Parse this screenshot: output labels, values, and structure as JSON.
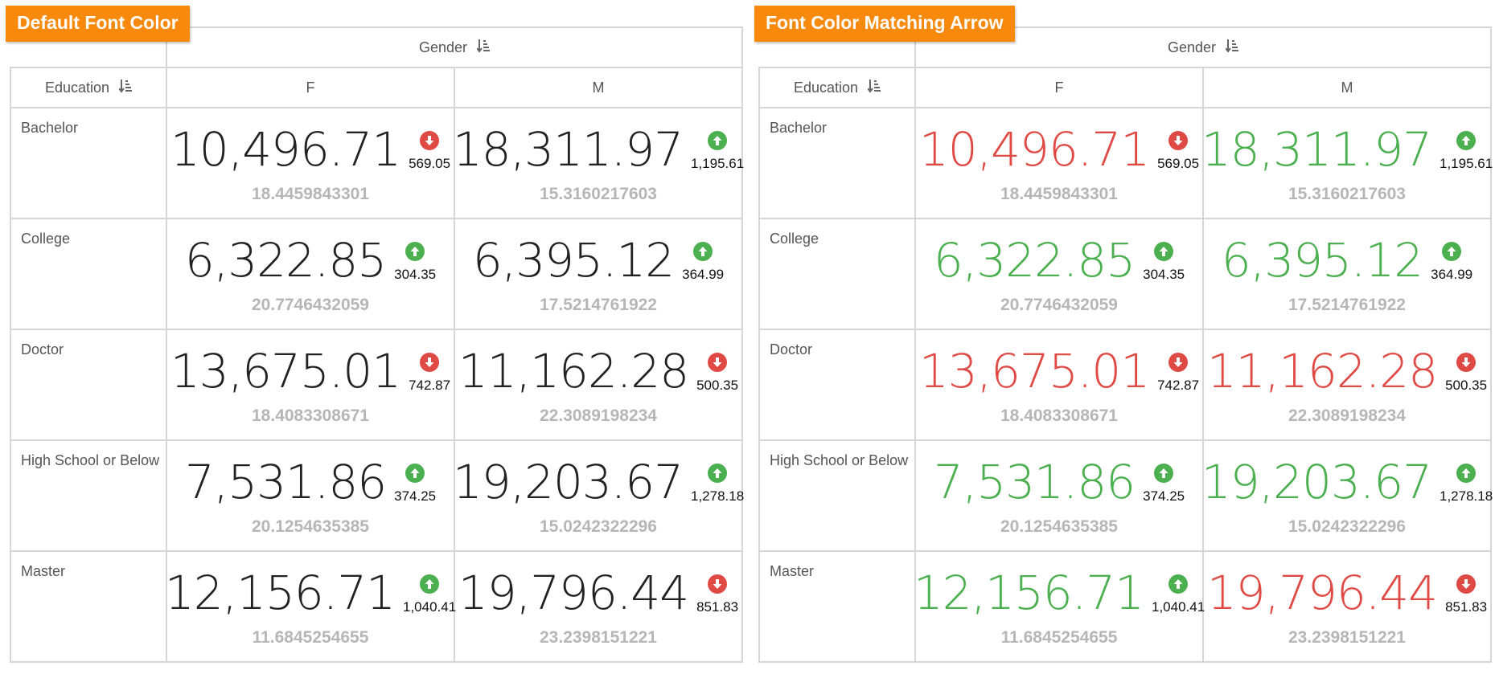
{
  "panels": [
    {
      "badge": "Default Font Color",
      "column_header": "Gender",
      "row_header": "Education",
      "columns": [
        "F",
        "M"
      ],
      "value_color_mode": "default",
      "rows": [
        {
          "label": "Bachelor",
          "cells": [
            {
              "value": "10,496.71",
              "delta": "569.05",
              "direction": "down",
              "sub": "18.4459843301"
            },
            {
              "value": "18,311.97",
              "delta": "1,195.61",
              "direction": "up",
              "sub": "15.3160217603"
            }
          ]
        },
        {
          "label": "College",
          "cells": [
            {
              "value": "6,322.85",
              "delta": "304.35",
              "direction": "up",
              "sub": "20.7746432059"
            },
            {
              "value": "6,395.12",
              "delta": "364.99",
              "direction": "up",
              "sub": "17.5214761922"
            }
          ]
        },
        {
          "label": "Doctor",
          "cells": [
            {
              "value": "13,675.01",
              "delta": "742.87",
              "direction": "down",
              "sub": "18.4083308671"
            },
            {
              "value": "11,162.28",
              "delta": "500.35",
              "direction": "down",
              "sub": "22.3089198234"
            }
          ]
        },
        {
          "label": "High School or Below",
          "cells": [
            {
              "value": "7,531.86",
              "delta": "374.25",
              "direction": "up",
              "sub": "20.1254635385"
            },
            {
              "value": "19,203.67",
              "delta": "1,278.18",
              "direction": "up",
              "sub": "15.0242322296"
            }
          ]
        },
        {
          "label": "Master",
          "cells": [
            {
              "value": "12,156.71",
              "delta": "1,040.41",
              "direction": "up",
              "sub": "11.6845254655"
            },
            {
              "value": "19,796.44",
              "delta": "851.83",
              "direction": "down",
              "sub": "23.2398151221"
            }
          ]
        }
      ]
    },
    {
      "badge": "Font Color Matching Arrow",
      "column_header": "Gender",
      "row_header": "Education",
      "columns": [
        "F",
        "M"
      ],
      "value_color_mode": "match-arrow",
      "rows": [
        {
          "label": "Bachelor",
          "cells": [
            {
              "value": "10,496.71",
              "delta": "569.05",
              "direction": "down",
              "sub": "18.4459843301"
            },
            {
              "value": "18,311.97",
              "delta": "1,195.61",
              "direction": "up",
              "sub": "15.3160217603"
            }
          ]
        },
        {
          "label": "College",
          "cells": [
            {
              "value": "6,322.85",
              "delta": "304.35",
              "direction": "up",
              "sub": "20.7746432059"
            },
            {
              "value": "6,395.12",
              "delta": "364.99",
              "direction": "up",
              "sub": "17.5214761922"
            }
          ]
        },
        {
          "label": "Doctor",
          "cells": [
            {
              "value": "13,675.01",
              "delta": "742.87",
              "direction": "down",
              "sub": "18.4083308671"
            },
            {
              "value": "11,162.28",
              "delta": "500.35",
              "direction": "down",
              "sub": "22.3089198234"
            }
          ]
        },
        {
          "label": "High School or Below",
          "cells": [
            {
              "value": "7,531.86",
              "delta": "374.25",
              "direction": "up",
              "sub": "20.1254635385"
            },
            {
              "value": "19,203.67",
              "delta": "1,278.18",
              "direction": "up",
              "sub": "15.0242322296"
            }
          ]
        },
        {
          "label": "Master",
          "cells": [
            {
              "value": "12,156.71",
              "delta": "1,040.41",
              "direction": "up",
              "sub": "11.6845254655"
            },
            {
              "value": "19,796.44",
              "delta": "851.83",
              "direction": "down",
              "sub": "23.2398151221"
            }
          ]
        }
      ]
    }
  ],
  "colors": {
    "badge": "#f7890d",
    "up": "#4caf50",
    "down": "#e04a45",
    "value_default": "#222222",
    "sub_text": "#b6b6b6",
    "grid_line": "#d6d6d6"
  },
  "icons": {
    "sort": "sort-ascending-icon",
    "up": "arrow-up-circle-icon",
    "down": "arrow-down-circle-icon"
  }
}
